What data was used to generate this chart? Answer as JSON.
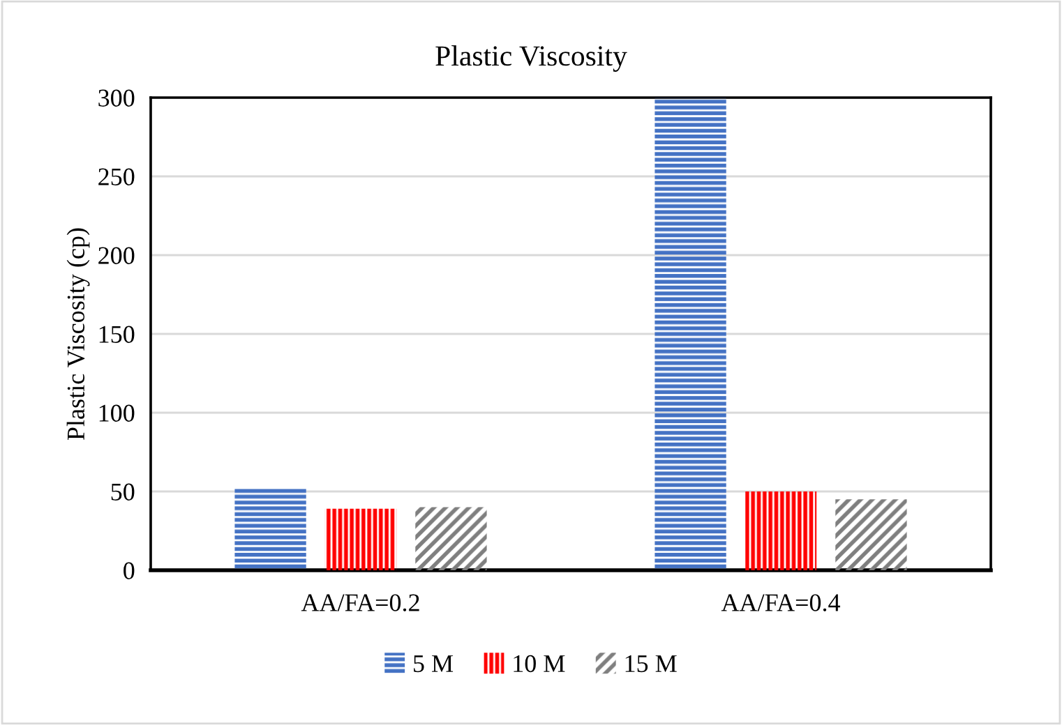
{
  "chart_data": {
    "type": "bar",
    "title": "Plastic Viscosity",
    "ylabel": "Plastic Viscosity (cp)",
    "categories": [
      "AA/FA=0.2",
      "AA/FA=0.4"
    ],
    "series": [
      {
        "name": "5 M",
        "color": "#4472c4",
        "values": [
          52,
          300
        ]
      },
      {
        "name": "10 M",
        "color": "#ff0000",
        "values": [
          39,
          50
        ]
      },
      {
        "name": "15 M",
        "color": "#7f7f7f",
        "values": [
          40,
          45
        ]
      }
    ],
    "ylim": [
      0,
      300
    ],
    "yticks": [
      0,
      50,
      100,
      150,
      200,
      250,
      300
    ],
    "grid": "y",
    "legend": "bottom"
  }
}
